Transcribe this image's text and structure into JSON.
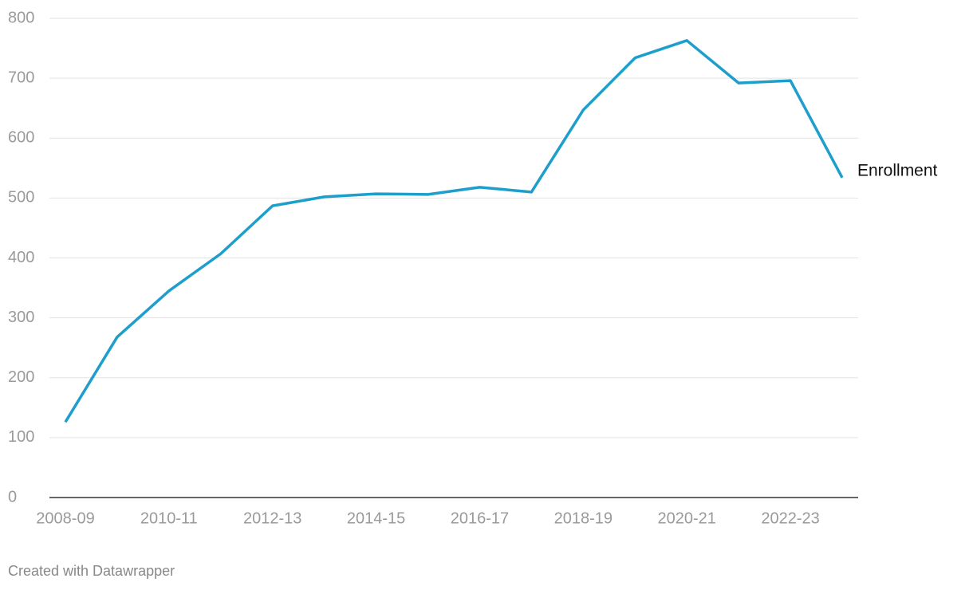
{
  "chart_data": {
    "type": "line",
    "categories": [
      "2008-09",
      null,
      "2010-11",
      null,
      "2012-13",
      null,
      "2014-15",
      null,
      "2016-17",
      null,
      "2018-19",
      null,
      "2020-21",
      null,
      "2022-23",
      null
    ],
    "series": [
      {
        "name": "Enrollment",
        "color": "#1d9ecb",
        "values": [
          126,
          268,
          345,
          407,
          487,
          502,
          507,
          506,
          518,
          510,
          647,
          734,
          763,
          692,
          696,
          534
        ]
      }
    ],
    "ylim": [
      0,
      800
    ],
    "yticks": [
      0,
      100,
      200,
      300,
      400,
      500,
      600,
      700,
      800
    ],
    "grid": true,
    "source": "Created with Datawrapper"
  }
}
